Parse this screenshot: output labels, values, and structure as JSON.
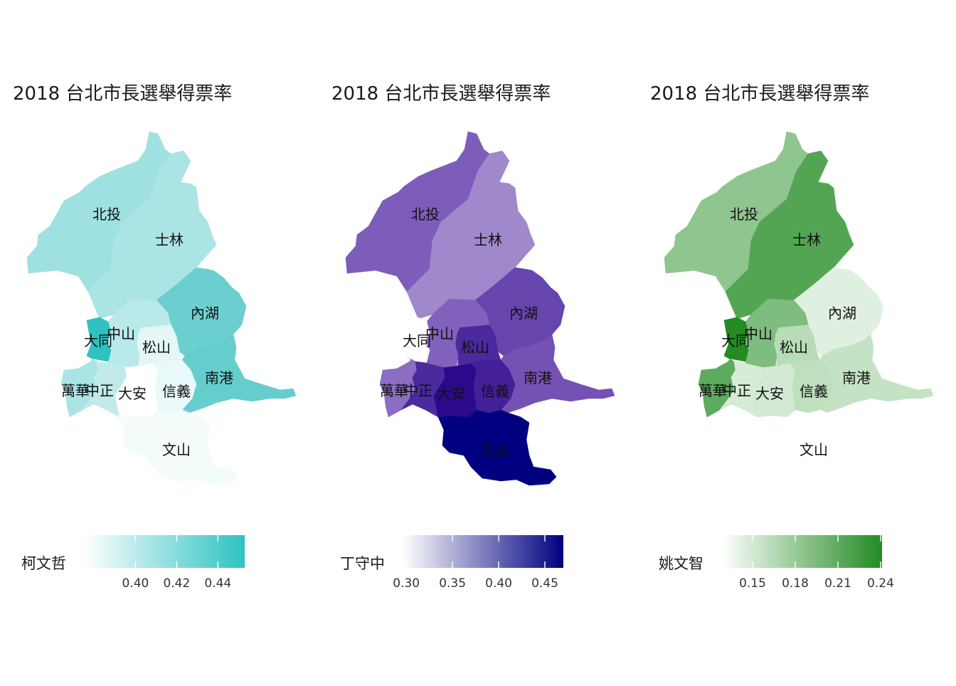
{
  "maps": [
    {
      "title": "2018 台北市長選舉得票率",
      "candidate": "柯文哲",
      "colors": {
        "low": "#ffffff",
        "high": "#2ec2c2"
      },
      "range": [
        0.375,
        0.453
      ],
      "ticks": [
        "0.40",
        "0.42",
        "0.44"
      ],
      "tick_values": [
        0.4,
        0.42,
        0.44
      ],
      "districts": {
        "北投": {
          "value": 0.418,
          "color": "#9fe1e1"
        },
        "士林": {
          "value": 0.413,
          "color": "#abe4e4"
        },
        "內湖": {
          "value": 0.435,
          "color": "#6ccfcf"
        },
        "大同": {
          "value": 0.452,
          "color": "#2ec2c2"
        },
        "中山": {
          "value": 0.409,
          "color": "#b9e9e9"
        },
        "松山": {
          "value": 0.393,
          "color": "#e4f6f6"
        },
        "南港": {
          "value": 0.437,
          "color": "#66cdcd"
        },
        "萬華": {
          "value": 0.413,
          "color": "#aae4e4"
        },
        "中正": {
          "value": 0.405,
          "color": "#c1ebeb"
        },
        "大安": {
          "value": 0.381,
          "color": "#ffffff"
        },
        "信義": {
          "value": 0.393,
          "color": "#e9f8f8"
        },
        "文山": {
          "value": 0.387,
          "color": "#f3fbfb"
        }
      }
    },
    {
      "title": "2018 台北市長選舉得票率",
      "candidate": "丁守中",
      "colors": {
        "low": "#ffffff",
        "high": "#000080"
      },
      "range": [
        0.296,
        0.47
      ],
      "ticks": [
        "0.30",
        "0.35",
        "0.40",
        "0.45"
      ],
      "tick_values": [
        0.3,
        0.35,
        0.4,
        0.45
      ],
      "districts": {
        "北投": {
          "value": 0.385,
          "color": "#7e5cba"
        },
        "士林": {
          "value": 0.365,
          "color": "#a088cc"
        },
        "內湖": {
          "value": 0.41,
          "color": "#6645ad"
        },
        "大同": {
          "value": 0.325,
          "color": "#ffffff"
        },
        "中山": {
          "value": 0.392,
          "color": "#8061bc"
        },
        "松山": {
          "value": 0.425,
          "color": "#4a2a9c"
        },
        "南港": {
          "value": 0.395,
          "color": "#7651b4"
        },
        "萬華": {
          "value": 0.38,
          "color": "#8b6dc1"
        },
        "中正": {
          "value": 0.425,
          "color": "#4a2a9d"
        },
        "大安": {
          "value": 0.445,
          "color": "#2a0a8a"
        },
        "信義": {
          "value": 0.43,
          "color": "#431f98"
        },
        "文山": {
          "value": 0.465,
          "color": "#000080"
        }
      }
    },
    {
      "title": "2018 台北市長選舉得票率",
      "candidate": "姚文智",
      "colors": {
        "low": "#ffffff",
        "high": "#228b22"
      },
      "range": [
        0.128,
        0.241
      ],
      "ticks": [
        "0.15",
        "0.18",
        "0.21",
        "0.24"
      ],
      "tick_values": [
        0.15,
        0.18,
        0.21,
        0.24
      ],
      "districts": {
        "北投": {
          "value": 0.195,
          "color": "#8fc58f"
        },
        "士林": {
          "value": 0.22,
          "color": "#53a553"
        },
        "內湖": {
          "value": 0.15,
          "color": "#e0f0e0"
        },
        "大同": {
          "value": 0.24,
          "color": "#228b22"
        },
        "中山": {
          "value": 0.195,
          "color": "#7fbc7f"
        },
        "松山": {
          "value": 0.17,
          "color": "#b8dbb8"
        },
        "南港": {
          "value": 0.165,
          "color": "#c4e2c4"
        },
        "萬華": {
          "value": 0.215,
          "color": "#5dab5d"
        },
        "中正": {
          "value": 0.16,
          "color": "#d5ebd5"
        },
        "大安": {
          "value": 0.155,
          "color": "#d3e9d3"
        },
        "信義": {
          "value": 0.168,
          "color": "#bfdfbf"
        },
        "文山": {
          "value": 0.13,
          "color": "#ffffff"
        }
      }
    }
  ]
}
